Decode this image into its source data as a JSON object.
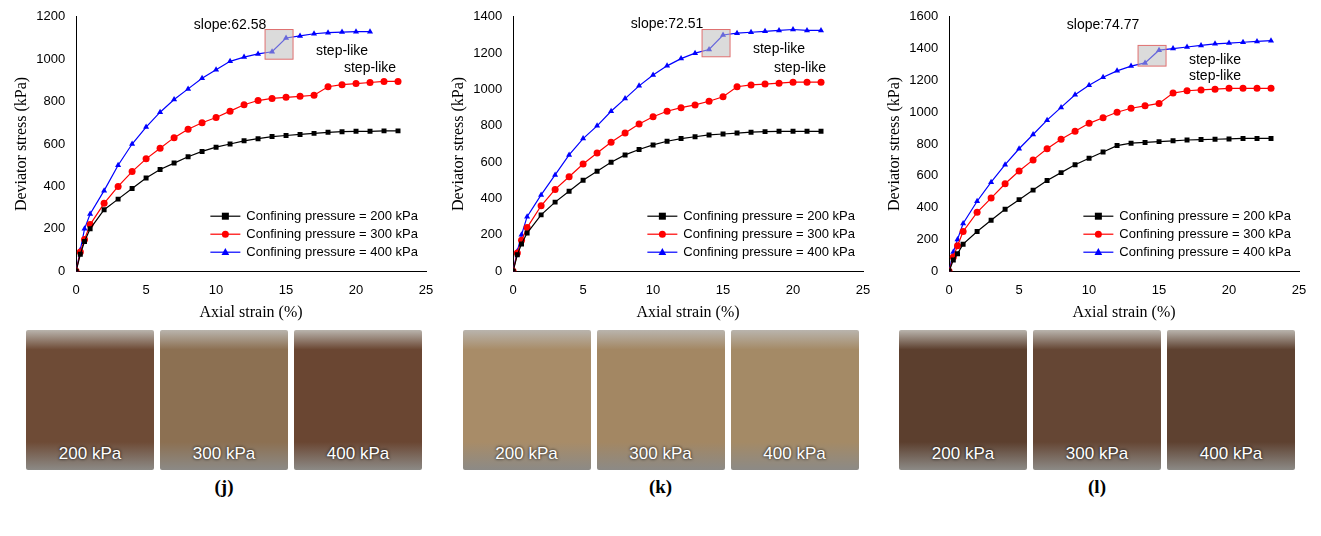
{
  "chart_data": [
    {
      "type": "line",
      "panel_label": "(j)",
      "x_label": "Axial strain (%)",
      "y_label": "Deviator stress (kPa)",
      "xlim": [
        0,
        25
      ],
      "xticks": [
        0,
        5,
        10,
        15,
        20,
        25
      ],
      "ylim": [
        0,
        1200
      ],
      "yticks": [
        0,
        200,
        400,
        600,
        800,
        1000,
        1200
      ],
      "grid": false,
      "legend": "lower right",
      "series": [
        {
          "name": "Confining pressure = 200 kPa",
          "color": "#000000",
          "marker": "square",
          "x": [
            0,
            0.3,
            0.6,
            1,
            2,
            3,
            4,
            5,
            6,
            7,
            8,
            9,
            10,
            11,
            12,
            13,
            14,
            15,
            16,
            17,
            18,
            19,
            20,
            21,
            22,
            23
          ],
          "values": [
            0,
            80,
            140,
            200,
            290,
            340,
            390,
            440,
            480,
            510,
            540,
            565,
            585,
            600,
            615,
            625,
            635,
            640,
            645,
            650,
            655,
            658,
            660,
            660,
            662,
            662
          ]
        },
        {
          "name": "Confining pressure = 300 kPa",
          "color": "#ff0000",
          "marker": "circle",
          "x": [
            0,
            0.3,
            0.6,
            1,
            2,
            3,
            4,
            5,
            6,
            7,
            8,
            9,
            10,
            11,
            12,
            13,
            14,
            15,
            16,
            17,
            18,
            19,
            20,
            21,
            22,
            23
          ],
          "values": [
            0,
            90,
            150,
            220,
            320,
            400,
            470,
            530,
            580,
            630,
            670,
            700,
            725,
            755,
            785,
            805,
            815,
            820,
            825,
            830,
            870,
            880,
            885,
            890,
            895,
            895
          ]
        },
        {
          "name": "Confining pressure = 400 kPa",
          "color": "#0000ff",
          "marker": "triangle",
          "x": [
            0,
            0.3,
            0.6,
            1,
            2,
            3,
            4,
            5,
            6,
            7,
            8,
            9,
            10,
            11,
            12,
            13,
            14,
            15,
            16,
            17,
            18,
            19,
            20,
            21
          ],
          "values": [
            0,
            100,
            200,
            270,
            380,
            500,
            600,
            680,
            750,
            810,
            860,
            910,
            950,
            990,
            1010,
            1025,
            1035,
            1100,
            1110,
            1120,
            1125,
            1128,
            1130,
            1130
          ]
        }
      ],
      "annotations": [
        {
          "text": "slope:62.58",
          "x": 11,
          "y": 1160
        },
        {
          "text": "step-like",
          "x": 19,
          "y": 1040
        },
        {
          "text": "step-like",
          "x": 21,
          "y": 960
        }
      ],
      "highlight": {
        "x": [
          13.5,
          15.5
        ],
        "y": [
          1000,
          1140
        ]
      },
      "photos": [
        "200 kPa",
        "300 kPa",
        "400 kPa"
      ]
    },
    {
      "type": "line",
      "panel_label": "(k)",
      "x_label": "Axial strain (%)",
      "y_label": "Deviator stress (kPa)",
      "xlim": [
        0,
        25
      ],
      "xticks": [
        0,
        5,
        10,
        15,
        20,
        25
      ],
      "ylim": [
        0,
        1400
      ],
      "yticks": [
        0,
        200,
        400,
        600,
        800,
        1000,
        1200,
        1400
      ],
      "grid": false,
      "legend": "lower right",
      "series": [
        {
          "name": "Confining pressure = 200 kPa",
          "color": "#000000",
          "marker": "square",
          "x": [
            0,
            0.3,
            0.6,
            1,
            2,
            3,
            4,
            5,
            6,
            7,
            8,
            9,
            10,
            11,
            12,
            13,
            14,
            15,
            16,
            17,
            18,
            19,
            20,
            21,
            22
          ],
          "values": [
            0,
            90,
            150,
            210,
            310,
            380,
            440,
            500,
            550,
            600,
            640,
            670,
            695,
            715,
            730,
            740,
            750,
            755,
            760,
            765,
            768,
            770,
            770,
            770,
            770
          ]
        },
        {
          "name": "Confining pressure = 300 kPa",
          "color": "#ff0000",
          "marker": "circle",
          "x": [
            0,
            0.3,
            0.6,
            1,
            2,
            3,
            4,
            5,
            6,
            7,
            8,
            9,
            10,
            11,
            12,
            13,
            14,
            15,
            16,
            17,
            18,
            19,
            20,
            21,
            22
          ],
          "values": [
            0,
            100,
            170,
            240,
            360,
            450,
            520,
            590,
            650,
            710,
            760,
            810,
            850,
            880,
            900,
            915,
            935,
            960,
            1015,
            1025,
            1030,
            1035,
            1040,
            1040,
            1040
          ]
        },
        {
          "name": "Confining pressure = 400 kPa",
          "color": "#0000ff",
          "marker": "triangle",
          "x": [
            0,
            0.3,
            0.6,
            1,
            2,
            3,
            4,
            5,
            6,
            7,
            8,
            9,
            10,
            11,
            12,
            13,
            14,
            15,
            16,
            17,
            18,
            19,
            20,
            21,
            22
          ],
          "values": [
            0,
            110,
            200,
            300,
            420,
            530,
            640,
            730,
            800,
            880,
            950,
            1020,
            1080,
            1130,
            1170,
            1200,
            1220,
            1300,
            1310,
            1315,
            1320,
            1325,
            1330,
            1325,
            1325
          ]
        }
      ],
      "annotations": [
        {
          "text": "slope:72.51",
          "x": 11,
          "y": 1360
        },
        {
          "text": "step-like",
          "x": 19,
          "y": 1220
        },
        {
          "text": "step-like",
          "x": 20.5,
          "y": 1120
        }
      ],
      "highlight": {
        "x": [
          13.5,
          15.5
        ],
        "y": [
          1180,
          1330
        ]
      },
      "photos": [
        "200 kPa",
        "300 kPa",
        "400 kPa"
      ]
    },
    {
      "type": "line",
      "panel_label": "(l)",
      "x_label": "Axial strain (%)",
      "y_label": "Deviator stress (kPa)",
      "xlim": [
        0,
        25
      ],
      "xticks": [
        0,
        5,
        10,
        15,
        20,
        25
      ],
      "ylim": [
        0,
        1600
      ],
      "yticks": [
        0,
        200,
        400,
        600,
        800,
        1000,
        1200,
        1400,
        1600
      ],
      "grid": false,
      "legend": "lower right",
      "series": [
        {
          "name": "Confining pressure = 200 kPa",
          "color": "#000000",
          "marker": "square",
          "x": [
            0,
            0.3,
            0.6,
            1,
            2,
            3,
            4,
            5,
            6,
            7,
            8,
            9,
            10,
            11,
            12,
            13,
            14,
            15,
            16,
            17,
            18,
            19,
            20,
            21,
            22,
            23
          ],
          "values": [
            0,
            70,
            110,
            170,
            250,
            320,
            390,
            450,
            510,
            570,
            620,
            670,
            710,
            750,
            790,
            805,
            810,
            815,
            820,
            825,
            828,
            830,
            832,
            835,
            835,
            835
          ]
        },
        {
          "name": "Confining pressure = 300 kPa",
          "color": "#ff0000",
          "marker": "circle",
          "x": [
            0,
            0.3,
            0.6,
            1,
            2,
            3,
            4,
            5,
            6,
            7,
            8,
            9,
            10,
            11,
            12,
            13,
            14,
            15,
            16,
            17,
            18,
            19,
            20,
            21,
            22,
            23
          ],
          "values": [
            0,
            90,
            160,
            250,
            370,
            460,
            550,
            630,
            700,
            770,
            830,
            880,
            930,
            965,
            1000,
            1025,
            1040,
            1055,
            1120,
            1135,
            1140,
            1145,
            1150,
            1150,
            1150,
            1150
          ]
        },
        {
          "name": "Confining pressure = 400 kPa",
          "color": "#0000ff",
          "marker": "triangle",
          "x": [
            0,
            0.3,
            0.6,
            1,
            2,
            3,
            4,
            5,
            6,
            7,
            8,
            9,
            10,
            11,
            12,
            13,
            14,
            15,
            16,
            17,
            18,
            19,
            20,
            21,
            22,
            23
          ],
          "values": [
            0,
            120,
            200,
            300,
            440,
            560,
            670,
            770,
            860,
            950,
            1030,
            1110,
            1170,
            1220,
            1260,
            1290,
            1310,
            1390,
            1400,
            1410,
            1420,
            1430,
            1435,
            1440,
            1445,
            1450
          ]
        }
      ],
      "annotations": [
        {
          "text": "slope:74.77",
          "x": 11,
          "y": 1550
        },
        {
          "text": "step-like",
          "x": 19,
          "y": 1330
        },
        {
          "text": "step-like",
          "x": 19,
          "y": 1225
        }
      ],
      "highlight": {
        "x": [
          13.5,
          15.5
        ],
        "y": [
          1290,
          1420
        ]
      },
      "photos": [
        "200 kPa",
        "300 kPa",
        "400 kPa"
      ]
    }
  ]
}
